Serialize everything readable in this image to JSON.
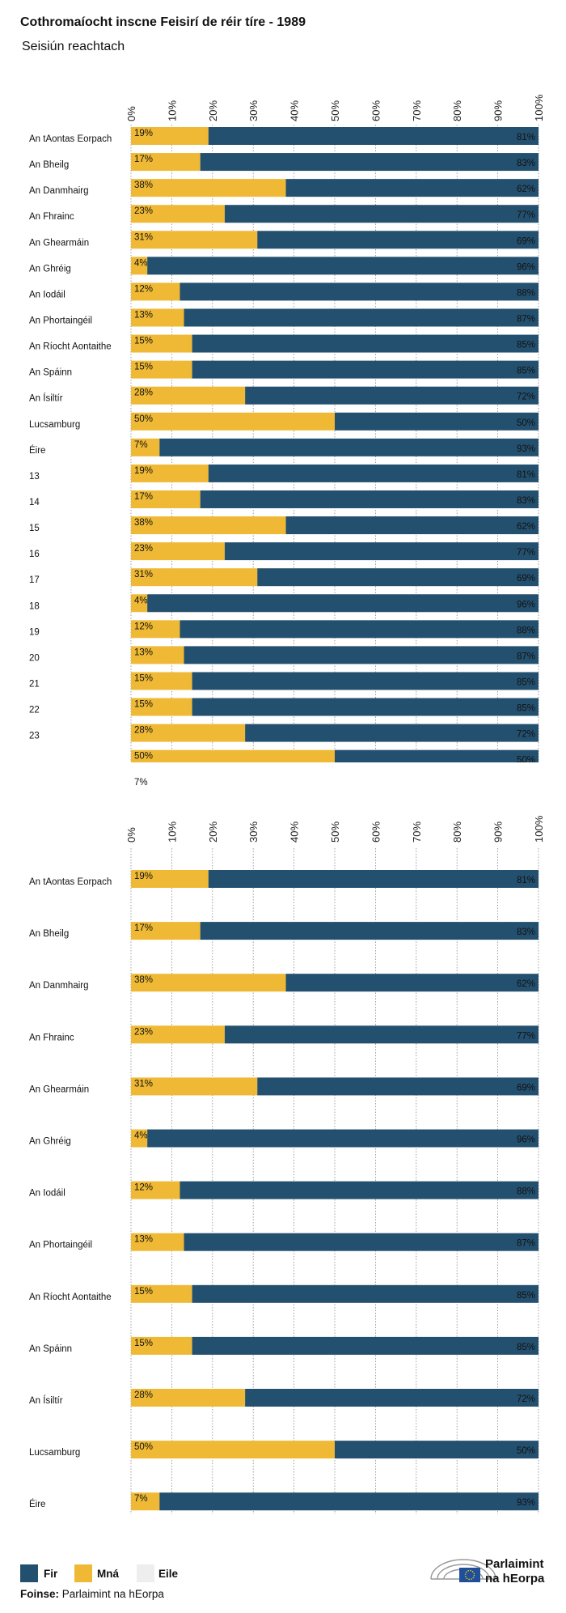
{
  "title": "Cothromaíocht inscne Feisirí de réir tíre - 1989",
  "subtitle": "Seisiún reachtach",
  "chart_data": [
    {
      "type": "bar",
      "orientation": "horizontal",
      "stacked": true,
      "grid": true,
      "categories": [
        "An tAontas Eorpach",
        "An Bheilg",
        "An Danmhairg",
        "An Fhrainc",
        "An Ghearmáin",
        "An Ghréig",
        "An Iodáil",
        "An Phortaingéil",
        "An Ríocht Aontaithe",
        "An Spáinn",
        "An Ísiltír",
        "Lucsamburg",
        "Éire",
        "13",
        "14",
        "15",
        "16",
        "17",
        "18",
        "19",
        "20",
        "21",
        "22",
        "23",
        null,
        null
      ],
      "series": [
        {
          "color": "#efb935",
          "values": [
            19,
            17,
            38,
            23,
            31,
            4,
            12,
            13,
            15,
            15,
            28,
            50,
            7,
            19,
            17,
            38,
            23,
            31,
            4,
            12,
            13,
            15,
            15,
            28,
            50,
            7
          ],
          "value_labels": [
            "19%",
            "17%",
            "38%",
            "23%",
            "31%",
            "4%",
            "12%",
            "13%",
            "15%",
            "15%",
            "28%",
            "50%",
            "7%",
            "19%",
            "17%",
            "38%",
            "23%",
            "31%",
            "4%",
            "12%",
            "13%",
            "15%",
            "15%",
            "28%",
            "50%",
            "7%"
          ]
        },
        {
          "color": "#24506f",
          "values": [
            81,
            83,
            62,
            77,
            69,
            96,
            88,
            87,
            85,
            85,
            72,
            50,
            93,
            81,
            83,
            62,
            77,
            69,
            96,
            88,
            87,
            85,
            85,
            72,
            50,
            null
          ],
          "value_labels": [
            "81%",
            "83%",
            "62%",
            "77%",
            "69%",
            "96%",
            "88%",
            "87%",
            "85%",
            "85%",
            "72%",
            "50%",
            "93%",
            "81%",
            "83%",
            "62%",
            "77%",
            "69%",
            "96%",
            "88%",
            "87%",
            "85%",
            "85%",
            "72%",
            "50%",
            null
          ]
        }
      ],
      "xlim": [
        0,
        100
      ],
      "xticks": [
        {
          "value": 0,
          "label": "0%"
        },
        {
          "value": 10,
          "label": "10%"
        },
        {
          "value": 20,
          "label": "20%"
        },
        {
          "value": 30,
          "label": "30%"
        },
        {
          "value": 40,
          "label": "40%"
        },
        {
          "value": 50,
          "label": "50%"
        },
        {
          "value": 60,
          "label": "60%"
        },
        {
          "value": 70,
          "label": "70%"
        },
        {
          "value": 80,
          "label": "80%"
        },
        {
          "value": 90,
          "label": "90%"
        },
        {
          "value": 100,
          "label": "100%"
        }
      ]
    },
    {
      "type": "bar",
      "orientation": "horizontal",
      "stacked": true,
      "grid": true,
      "categories": [
        "An tAontas Eorpach",
        "An Bheilg",
        "An Danmhairg",
        "An Fhrainc",
        "An Ghearmáin",
        "An Ghréig",
        "An Iodáil",
        "An Phortaingéil",
        "An Ríocht Aontaithe",
        "An Spáinn",
        "An Ísiltír",
        "Lucsamburg",
        "Éire"
      ],
      "series": [
        {
          "color": "#efb935",
          "values": [
            19,
            17,
            38,
            23,
            31,
            4,
            12,
            13,
            15,
            15,
            28,
            50,
            7
          ],
          "value_labels": [
            "19%",
            "17%",
            "38%",
            "23%",
            "31%",
            "4%",
            "12%",
            "13%",
            "15%",
            "15%",
            "28%",
            "50%",
            "7%"
          ]
        },
        {
          "color": "#24506f",
          "values": [
            81,
            83,
            62,
            77,
            69,
            96,
            88,
            87,
            85,
            85,
            72,
            50,
            93
          ],
          "value_labels": [
            "81%",
            "83%",
            "62%",
            "77%",
            "69%",
            "96%",
            "88%",
            "87%",
            "85%",
            "85%",
            "72%",
            "50%",
            "93%"
          ]
        }
      ],
      "xlim": [
        0,
        100
      ],
      "xticks": [
        {
          "value": 0,
          "label": "0%"
        },
        {
          "value": 10,
          "label": "10%"
        },
        {
          "value": 20,
          "label": "20%"
        },
        {
          "value": 30,
          "label": "30%"
        },
        {
          "value": 40,
          "label": "40%"
        },
        {
          "value": 50,
          "label": "50%"
        },
        {
          "value": 60,
          "label": "60%"
        },
        {
          "value": 70,
          "label": "70%"
        },
        {
          "value": 80,
          "label": "80%"
        },
        {
          "value": 90,
          "label": "90%"
        },
        {
          "value": 100,
          "label": "100%"
        }
      ]
    }
  ],
  "legend": [
    {
      "name": "Fir",
      "color": "#24506f"
    },
    {
      "name": "Mná",
      "color": "#efb935"
    },
    {
      "name": "Eile",
      "color": "#eeeeee"
    }
  ],
  "source": {
    "label": "Foinse:",
    "text": "Parlaimint na hEorpa"
  },
  "logo": [
    "Parlaimint",
    "na hEorpa"
  ]
}
